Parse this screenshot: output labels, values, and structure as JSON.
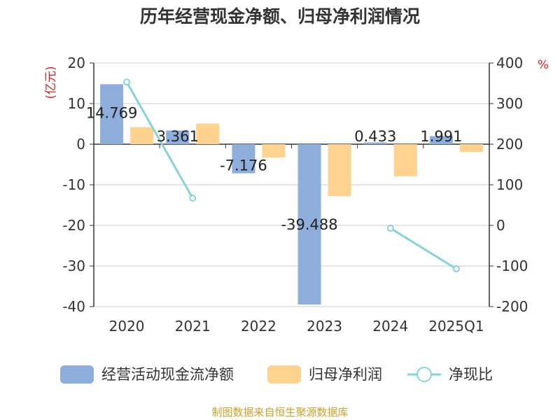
{
  "chart_data": {
    "type": "bar",
    "title": "历年经营现金净额、归母净利润情况",
    "categories": [
      "2020",
      "2021",
      "2022",
      "2023",
      "2024",
      "2025Q1"
    ],
    "series": [
      {
        "name": "经营活动现金流净额",
        "kind": "bar",
        "axis": "left",
        "values": [
          14.769,
          3.361,
          -7.176,
          -39.488,
          0.433,
          1.991
        ],
        "labels": [
          "14.769",
          "3.361",
          "-7.176",
          "-39.488",
          "0.433",
          "1.991"
        ]
      },
      {
        "name": "归母净利润",
        "kind": "bar",
        "axis": "left",
        "values": [
          4.2,
          5.1,
          -3.3,
          -12.8,
          -7.9,
          -1.9
        ]
      },
      {
        "name": "净现比",
        "kind": "line",
        "axis": "right",
        "values": [
          353,
          67,
          null,
          null,
          -7,
          -107
        ]
      }
    ],
    "y_left": {
      "unit": "(亿元)",
      "ylim": [
        -40,
        20
      ],
      "ticks": [
        "20",
        "10",
        "0",
        "-10",
        "-20",
        "-30",
        "-40"
      ]
    },
    "y_right": {
      "unit": "%",
      "ylim": [
        -200,
        400
      ],
      "ticks": [
        "400",
        "300",
        "200",
        "100",
        "0",
        "-100",
        "-200"
      ]
    },
    "grid": true,
    "legend_position": "bottom"
  },
  "colors": {
    "bar1": "#8eaedb",
    "bar2": "#fdd38f",
    "line": "#86d3d8",
    "unit": "#e02020",
    "source": "#c9a227"
  },
  "source_text": "制图数据来自恒生聚源数据库"
}
